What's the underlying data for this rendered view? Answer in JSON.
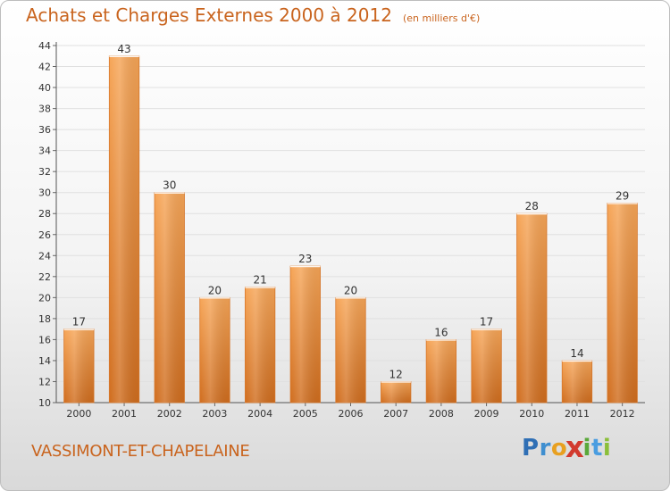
{
  "chart_data": {
    "type": "bar",
    "title": "Achats et Charges Externes 2000 à 2012",
    "subtitle": "(en milliers d'€)",
    "categories": [
      "2000",
      "2001",
      "2002",
      "2003",
      "2004",
      "2005",
      "2006",
      "2007",
      "2008",
      "2009",
      "2010",
      "2011",
      "2012"
    ],
    "values": [
      17,
      43,
      30,
      20,
      21,
      23,
      20,
      12,
      16,
      17,
      28,
      14,
      29
    ],
    "ylim": [
      10,
      44
    ],
    "yticks": [
      10,
      12,
      14,
      16,
      18,
      20,
      22,
      24,
      26,
      28,
      30,
      32,
      34,
      36,
      38,
      40,
      42,
      44
    ],
    "grid": true,
    "bar_color": "#e8883a"
  },
  "footer": {
    "place": "VASSIMONT-ET-CHAPELAINE"
  },
  "logo": {
    "letters": [
      {
        "ch": "P",
        "color": "#2f6fb5"
      },
      {
        "ch": "r",
        "color": "#3f8fd0"
      },
      {
        "ch": "o",
        "color": "#e8a020"
      },
      {
        "ch": "x",
        "color": "#d23a2e"
      },
      {
        "ch": "i",
        "color": "#5aa83a"
      },
      {
        "ch": "t",
        "color": "#4a9de0"
      },
      {
        "ch": "i",
        "color": "#8bbf3a"
      }
    ]
  }
}
